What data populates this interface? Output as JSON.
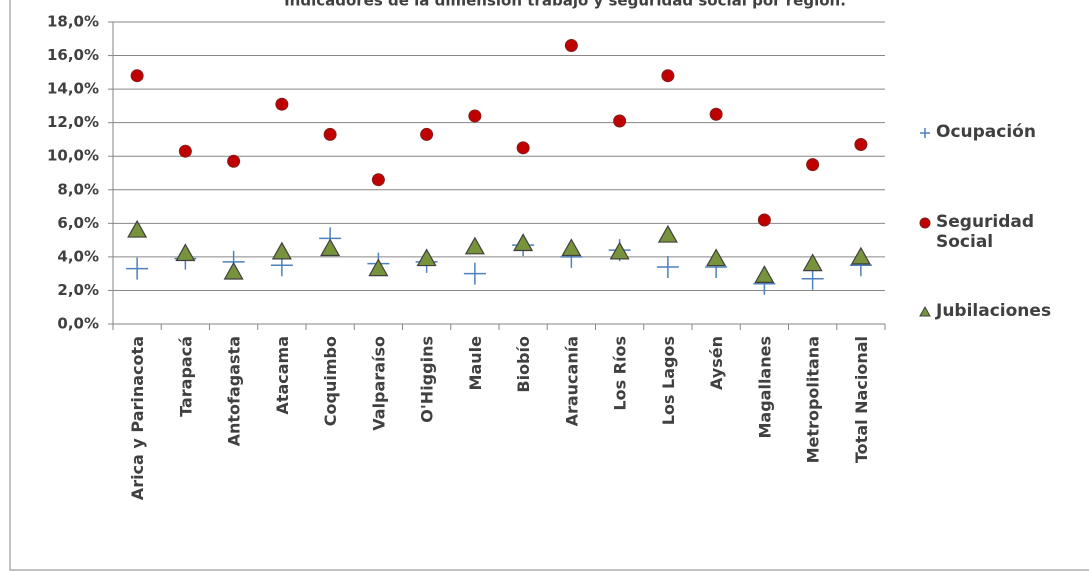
{
  "chart_data": {
    "type": "scatter",
    "title": "Indicadores de la dimensión trabajo y seguridad social por región.",
    "categories": [
      "Arica y Parinacota",
      "Tarapacá",
      "Antofagasta",
      "Atacama",
      "Coquimbo",
      "Valparaíso",
      "O'Higgins",
      "Maule",
      "Biobío",
      "Araucanía",
      "Los Ríos",
      "Los Lagos",
      "Aysén",
      "Magallanes",
      "Metropolitana",
      "Total Nacional"
    ],
    "series": [
      {
        "name": "Ocupación",
        "color": "#4f81bd",
        "marker": "plus",
        "values": [
          3.3,
          3.9,
          3.7,
          3.5,
          5.1,
          3.6,
          3.7,
          3.0,
          4.7,
          4.0,
          4.4,
          3.4,
          3.4,
          2.4,
          2.7,
          3.5
        ]
      },
      {
        "name": "Seguridad Social",
        "color": "#c0504d",
        "marker": "circle",
        "values": [
          14.8,
          10.3,
          9.7,
          13.1,
          11.3,
          8.6,
          11.3,
          12.4,
          10.5,
          16.6,
          12.1,
          14.8,
          12.5,
          6.2,
          9.5,
          10.7
        ]
      },
      {
        "name": "Jubilaciones",
        "color": "#77933c",
        "marker": "triangle",
        "values": [
          5.6,
          4.2,
          3.1,
          4.3,
          4.5,
          3.3,
          3.9,
          4.6,
          4.8,
          4.5,
          4.3,
          5.3,
          3.9,
          2.9,
          3.6,
          4.0
        ]
      }
    ],
    "ylim": [
      0,
      18
    ],
    "yticks": [
      {
        "value": 0,
        "label": "0,0%"
      },
      {
        "value": 2,
        "label": "2,0%"
      },
      {
        "value": 4,
        "label": "4,0%"
      },
      {
        "value": 6,
        "label": "6,0%"
      },
      {
        "value": 8,
        "label": "8,0%"
      },
      {
        "value": 10,
        "label": "10,0%"
      },
      {
        "value": 12,
        "label": "12,0%"
      },
      {
        "value": 14,
        "label": "14,0%"
      },
      {
        "value": 16,
        "label": "16,0%"
      },
      {
        "value": 18,
        "label": "18,0%"
      }
    ],
    "grid": true,
    "legend": "right"
  }
}
